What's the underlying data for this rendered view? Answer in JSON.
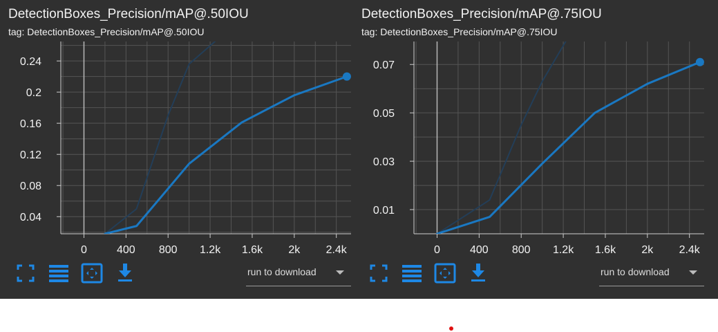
{
  "colors": {
    "background": "#303030",
    "grid": "#555555",
    "line": "#1a78c2",
    "faded_line": "#233e58",
    "text": "#f2f2f2",
    "icon": "#1e88e5"
  },
  "toolbar_icons": [
    "fullscreen-icon",
    "data-table-icon",
    "fit-domain-icon",
    "download-icon"
  ],
  "cards": [
    {
      "title": "DetectionBoxes_Precision/mAP@.50IOU",
      "tag": "tag: DetectionBoxes_Precision/mAP@.50IOU",
      "run_select": "run to download",
      "chart_data": {
        "type": "line",
        "xlim": [
          -220,
          2540
        ],
        "ylim": [
          0.018,
          0.265
        ],
        "x_ticks": [
          0,
          400,
          800,
          1200,
          1600,
          2000,
          2400
        ],
        "x_tick_labels": [
          "0",
          "400",
          "800",
          "1.2k",
          "1.6k",
          "2k",
          "2.4k"
        ],
        "y_ticks": [
          0.04,
          0.08,
          0.12,
          0.16,
          0.2,
          0.24
        ],
        "y_tick_labels": [
          "0.04",
          "0.08",
          "0.12",
          "0.16",
          "0.2",
          "0.24"
        ],
        "grid": true,
        "series": [
          {
            "style": "smoothed",
            "x": [
              200,
              500,
              1000,
              1500,
              2000,
              2500
            ],
            "y": [
              0.018,
              0.028,
              0.108,
              0.161,
              0.196,
              0.22
            ]
          },
          {
            "style": "faded",
            "x": [
              200,
              500,
              800,
              1000,
              1500
            ],
            "y": [
              0.018,
              0.05,
              0.17,
              0.236,
              0.295
            ]
          }
        ],
        "highlight": {
          "x": 2500,
          "y": 0.22
        }
      }
    },
    {
      "title": "DetectionBoxes_Precision/mAP@.75IOU",
      "tag": "tag: DetectionBoxes_Precision/mAP@.75IOU",
      "run_select": "run to download",
      "chart_data": {
        "type": "line",
        "xlim": [
          -220,
          2540
        ],
        "ylim": [
          0.0,
          0.0795
        ],
        "x_ticks": [
          0,
          400,
          800,
          1200,
          1600,
          2000,
          2400
        ],
        "x_tick_labels": [
          "0",
          "400",
          "800",
          "1.2k",
          "1.6k",
          "2k",
          "2.4k"
        ],
        "y_ticks": [
          0.01,
          0.03,
          0.05,
          0.07
        ],
        "y_tick_labels": [
          "0.01",
          "0.03",
          "0.05",
          "0.07"
        ],
        "grid": true,
        "series": [
          {
            "style": "smoothed",
            "x": [
              0,
              500,
              1000,
              1500,
              2000,
              2500
            ],
            "y": [
              0.0,
              0.007,
              0.029,
              0.05,
              0.062,
              0.071
            ]
          },
          {
            "style": "faded",
            "x": [
              0,
              500,
              800,
              1000,
              1500
            ],
            "y": [
              0.0,
              0.014,
              0.045,
              0.063,
              0.1
            ]
          }
        ],
        "highlight": {
          "x": 2500,
          "y": 0.071
        }
      }
    }
  ]
}
